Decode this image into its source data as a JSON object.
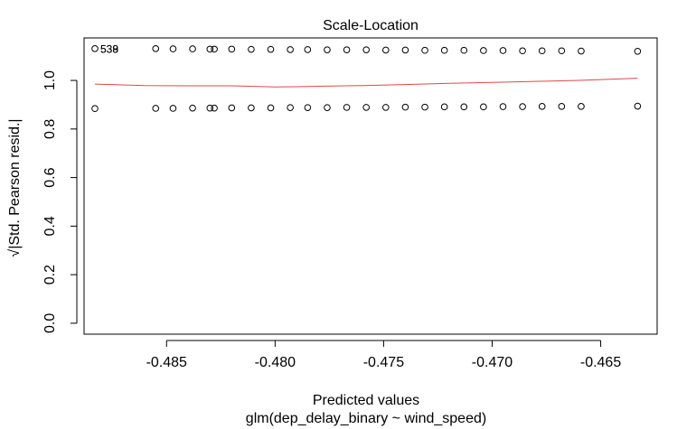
{
  "chart_data": {
    "type": "scatter",
    "title": "Scale-Location",
    "xlabel": "Predicted values",
    "subtitle": "glm(dep_delay_binary ~ wind_speed)",
    "ylabel": "√|Std. Pearson resid.|",
    "xlim": [
      -0.4888,
      -0.4624
    ],
    "ylim": [
      -0.045,
      1.175
    ],
    "x_ticks": [
      -0.485,
      -0.48,
      -0.475,
      -0.47,
      -0.465
    ],
    "x_tick_labels": [
      "-0.485",
      "-0.480",
      "-0.475",
      "-0.470",
      "-0.465"
    ],
    "y_ticks": [
      0.0,
      0.2,
      0.4,
      0.6,
      0.8,
      1.0
    ],
    "y_tick_labels": [
      "0.0",
      "0.2",
      "0.4",
      "0.6",
      "0.8",
      "1.0"
    ],
    "point_x": [
      -0.4883,
      -0.4855,
      -0.4847,
      -0.4838,
      -0.483,
      -0.4828,
      -0.482,
      -0.4811,
      -0.4802,
      -0.4793,
      -0.4785,
      -0.4776,
      -0.4767,
      -0.4758,
      -0.4749,
      -0.474,
      -0.4731,
      -0.4722,
      -0.4713,
      -0.4704,
      -0.4695,
      -0.4686,
      -0.4677,
      -0.4668,
      -0.4659,
      -0.4633
    ],
    "upper_y": [
      1.131,
      1.131,
      1.13,
      1.13,
      1.129,
      1.129,
      1.129,
      1.128,
      1.128,
      1.127,
      1.127,
      1.126,
      1.126,
      1.126,
      1.125,
      1.125,
      1.124,
      1.124,
      1.124,
      1.123,
      1.123,
      1.122,
      1.122,
      1.122,
      1.121,
      1.12
    ],
    "lower_y": [
      0.884,
      0.885,
      0.885,
      0.886,
      0.886,
      0.886,
      0.887,
      0.887,
      0.887,
      0.888,
      0.888,
      0.888,
      0.889,
      0.889,
      0.889,
      0.89,
      0.89,
      0.891,
      0.891,
      0.891,
      0.892,
      0.892,
      0.893,
      0.893,
      0.893,
      0.894
    ],
    "smooth_line": {
      "color": "#e0474c",
      "x": [
        -0.4883,
        -0.486,
        -0.484,
        -0.482,
        -0.48,
        -0.479,
        -0.478,
        -0.476,
        -0.474,
        -0.472,
        -0.47,
        -0.468,
        -0.466,
        -0.4633
      ],
      "y": [
        0.985,
        0.979,
        0.978,
        0.978,
        0.973,
        0.974,
        0.976,
        0.979,
        0.983,
        0.988,
        0.992,
        0.996,
        1.0,
        1.009
      ]
    },
    "labeled_points": [
      {
        "label": "538",
        "x": -0.4883,
        "y": 1.131
      },
      {
        "label": "539",
        "x": -0.4883,
        "y": 1.131
      }
    ],
    "grid": false
  }
}
